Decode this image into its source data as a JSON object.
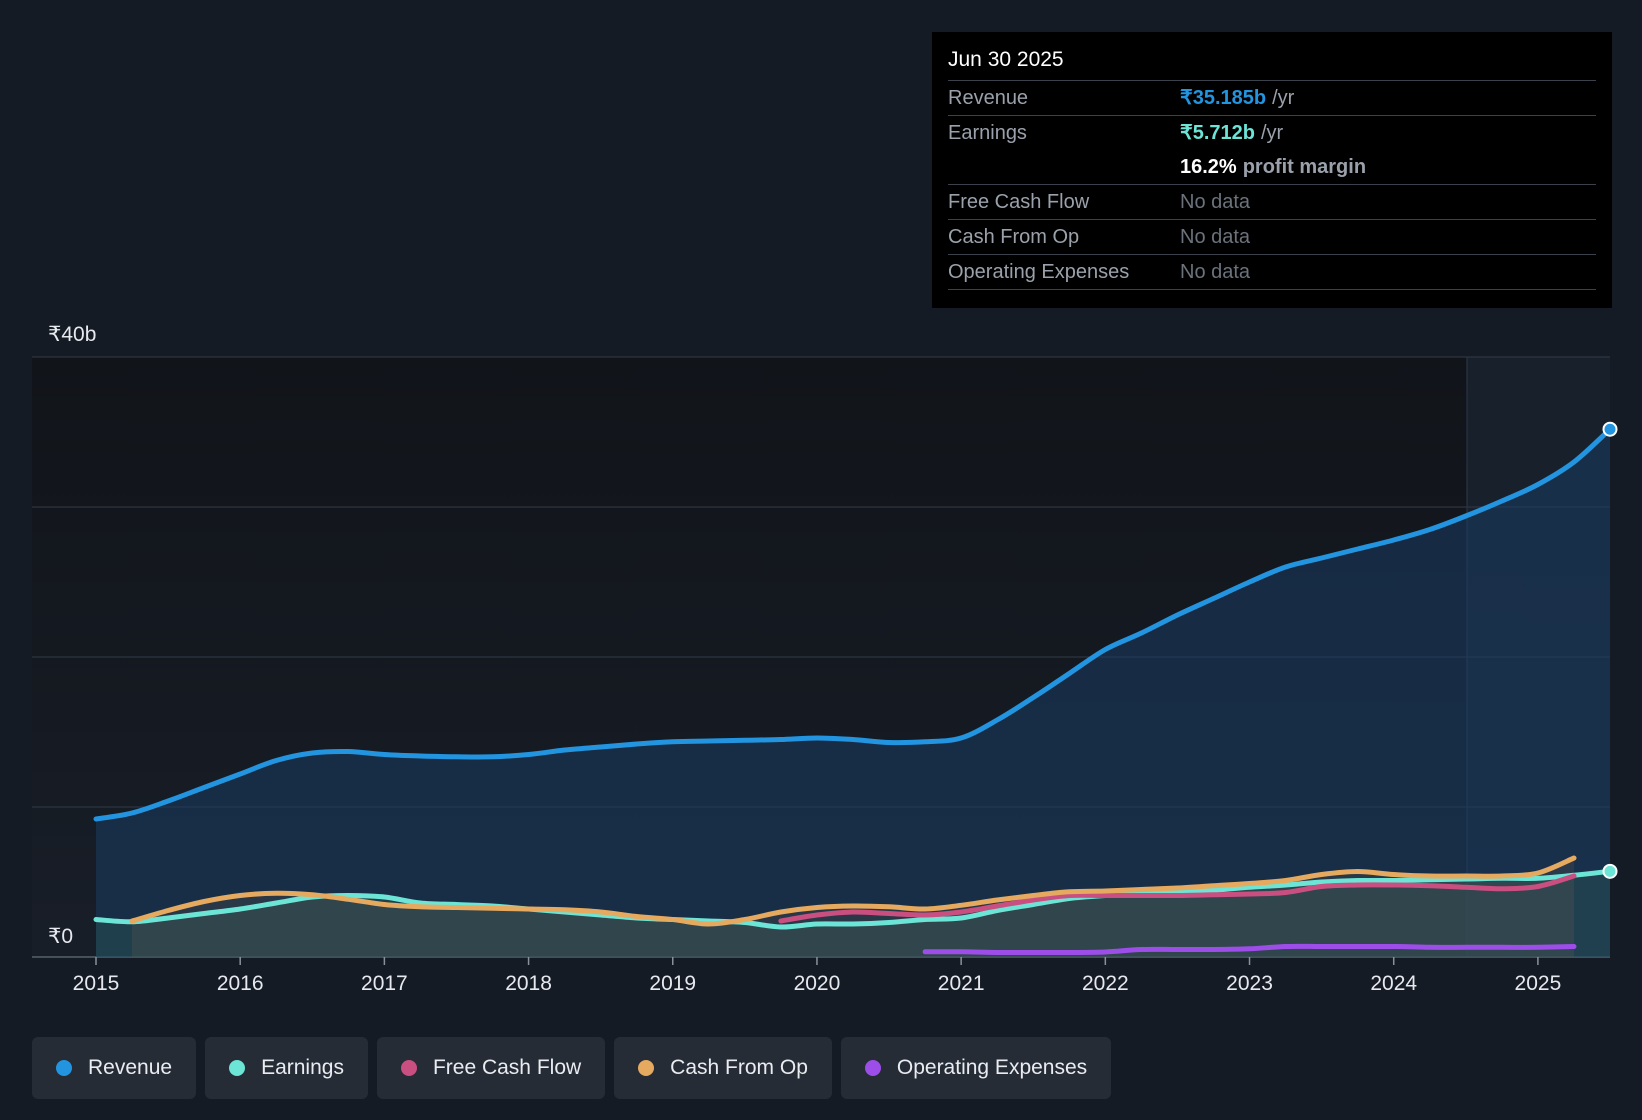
{
  "tooltip": {
    "date": "Jun 30 2025",
    "revenue_label": "Revenue",
    "revenue_value": "₹35.185b",
    "revenue_unit": "/yr",
    "earnings_label": "Earnings",
    "earnings_value": "₹5.712b",
    "earnings_unit": "/yr",
    "margin_value": "16.2%",
    "margin_label": "profit margin",
    "fcf_label": "Free Cash Flow",
    "fcf_value": "No data",
    "cfo_label": "Cash From Op",
    "cfo_value": "No data",
    "opex_label": "Operating Expenses",
    "opex_value": "No data"
  },
  "legend": [
    {
      "label": "Revenue",
      "color": "#2394df"
    },
    {
      "label": "Earnings",
      "color": "#6ce4d6"
    },
    {
      "label": "Free Cash Flow",
      "color": "#c94f80"
    },
    {
      "label": "Cash From Op",
      "color": "#e5a95f"
    },
    {
      "label": "Operating Expenses",
      "color": "#9d4ee8"
    }
  ],
  "chart_data": {
    "type": "line",
    "title": "",
    "ylabel": "",
    "ylim": [
      0,
      40
    ],
    "y_tick_labels": [
      {
        "value": 40,
        "label": "₹40b"
      },
      {
        "value": 0,
        "label": "₹0"
      }
    ],
    "gridlines": [
      0,
      10,
      20,
      30,
      40
    ],
    "x_ticks": [
      "2015",
      "2016",
      "2017",
      "2018",
      "2019",
      "2020",
      "2021",
      "2022",
      "2023",
      "2024",
      "2025"
    ],
    "xlim": [
      2015.0,
      2025.5
    ],
    "highlight_from": 2024.5,
    "series": [
      {
        "name": "Revenue",
        "color": "#2394df",
        "fill": true,
        "points": [
          [
            2015.0,
            9.2
          ],
          [
            2015.25,
            9.6
          ],
          [
            2015.5,
            10.4
          ],
          [
            2015.75,
            11.3
          ],
          [
            2016.0,
            12.2
          ],
          [
            2016.25,
            13.1
          ],
          [
            2016.5,
            13.6
          ],
          [
            2016.75,
            13.7
          ],
          [
            2017.0,
            13.5
          ],
          [
            2017.25,
            13.4
          ],
          [
            2017.5,
            13.35
          ],
          [
            2017.75,
            13.35
          ],
          [
            2018.0,
            13.5
          ],
          [
            2018.25,
            13.8
          ],
          [
            2018.5,
            14.0
          ],
          [
            2018.75,
            14.2
          ],
          [
            2019.0,
            14.35
          ],
          [
            2019.25,
            14.4
          ],
          [
            2019.5,
            14.45
          ],
          [
            2019.75,
            14.5
          ],
          [
            2020.0,
            14.6
          ],
          [
            2020.25,
            14.5
          ],
          [
            2020.5,
            14.3
          ],
          [
            2020.75,
            14.35
          ],
          [
            2021.0,
            14.6
          ],
          [
            2021.25,
            15.8
          ],
          [
            2021.5,
            17.3
          ],
          [
            2021.75,
            18.9
          ],
          [
            2022.0,
            20.5
          ],
          [
            2022.25,
            21.6
          ],
          [
            2022.5,
            22.8
          ],
          [
            2022.75,
            23.9
          ],
          [
            2023.0,
            25.0
          ],
          [
            2023.25,
            26.0
          ],
          [
            2023.5,
            26.6
          ],
          [
            2023.75,
            27.2
          ],
          [
            2024.0,
            27.8
          ],
          [
            2024.25,
            28.5
          ],
          [
            2024.5,
            29.4
          ],
          [
            2024.75,
            30.4
          ],
          [
            2025.0,
            31.5
          ],
          [
            2025.25,
            33.0
          ],
          [
            2025.5,
            35.185
          ]
        ]
      },
      {
        "name": "Earnings",
        "color": "#6ce4d6",
        "fill": true,
        "points": [
          [
            2015.0,
            2.5
          ],
          [
            2015.25,
            2.35
          ],
          [
            2015.5,
            2.6
          ],
          [
            2015.75,
            2.9
          ],
          [
            2016.0,
            3.2
          ],
          [
            2016.25,
            3.6
          ],
          [
            2016.5,
            4.0
          ],
          [
            2016.75,
            4.1
          ],
          [
            2017.0,
            4.0
          ],
          [
            2017.25,
            3.6
          ],
          [
            2017.5,
            3.5
          ],
          [
            2017.75,
            3.4
          ],
          [
            2018.0,
            3.2
          ],
          [
            2018.25,
            3.0
          ],
          [
            2018.5,
            2.8
          ],
          [
            2018.75,
            2.6
          ],
          [
            2019.0,
            2.5
          ],
          [
            2019.25,
            2.4
          ],
          [
            2019.5,
            2.3
          ],
          [
            2019.75,
            2.0
          ],
          [
            2020.0,
            2.2
          ],
          [
            2020.25,
            2.2
          ],
          [
            2020.5,
            2.3
          ],
          [
            2020.75,
            2.5
          ],
          [
            2021.0,
            2.6
          ],
          [
            2021.25,
            3.1
          ],
          [
            2021.5,
            3.5
          ],
          [
            2021.75,
            3.9
          ],
          [
            2022.0,
            4.1
          ],
          [
            2022.25,
            4.2
          ],
          [
            2022.5,
            4.3
          ],
          [
            2022.75,
            4.45
          ],
          [
            2023.0,
            4.65
          ],
          [
            2023.25,
            4.8
          ],
          [
            2023.5,
            5.0
          ],
          [
            2023.75,
            5.1
          ],
          [
            2024.0,
            5.1
          ],
          [
            2024.25,
            5.15
          ],
          [
            2024.5,
            5.2
          ],
          [
            2024.75,
            5.25
          ],
          [
            2025.0,
            5.25
          ],
          [
            2025.25,
            5.45
          ],
          [
            2025.5,
            5.712
          ]
        ]
      },
      {
        "name": "Free Cash Flow",
        "color": "#c94f80",
        "fill": false,
        "points": [
          [
            2019.75,
            2.4
          ],
          [
            2020.0,
            2.8
          ],
          [
            2020.25,
            3.0
          ],
          [
            2020.5,
            2.9
          ],
          [
            2020.75,
            2.8
          ],
          [
            2021.0,
            3.0
          ],
          [
            2021.25,
            3.4
          ],
          [
            2021.5,
            3.8
          ],
          [
            2021.75,
            4.1
          ],
          [
            2022.0,
            4.1
          ],
          [
            2022.25,
            4.1
          ],
          [
            2022.5,
            4.1
          ],
          [
            2022.75,
            4.15
          ],
          [
            2023.0,
            4.2
          ],
          [
            2023.25,
            4.3
          ],
          [
            2023.5,
            4.7
          ],
          [
            2023.75,
            4.8
          ],
          [
            2024.0,
            4.8
          ],
          [
            2024.25,
            4.75
          ],
          [
            2024.5,
            4.65
          ],
          [
            2024.75,
            4.55
          ],
          [
            2025.0,
            4.7
          ],
          [
            2025.25,
            5.4
          ]
        ]
      },
      {
        "name": "Cash From Op",
        "color": "#e5a95f",
        "fill": true,
        "points": [
          [
            2015.25,
            2.4
          ],
          [
            2015.5,
            3.1
          ],
          [
            2015.75,
            3.7
          ],
          [
            2016.0,
            4.1
          ],
          [
            2016.25,
            4.25
          ],
          [
            2016.5,
            4.15
          ],
          [
            2016.75,
            3.85
          ],
          [
            2017.0,
            3.5
          ],
          [
            2017.25,
            3.35
          ],
          [
            2017.5,
            3.3
          ],
          [
            2017.75,
            3.25
          ],
          [
            2018.0,
            3.2
          ],
          [
            2018.25,
            3.15
          ],
          [
            2018.5,
            3.0
          ],
          [
            2018.75,
            2.7
          ],
          [
            2019.0,
            2.5
          ],
          [
            2019.25,
            2.2
          ],
          [
            2019.5,
            2.5
          ],
          [
            2019.75,
            3.0
          ],
          [
            2020.0,
            3.3
          ],
          [
            2020.25,
            3.4
          ],
          [
            2020.5,
            3.35
          ],
          [
            2020.75,
            3.2
          ],
          [
            2021.0,
            3.45
          ],
          [
            2021.25,
            3.8
          ],
          [
            2021.5,
            4.1
          ],
          [
            2021.75,
            4.35
          ],
          [
            2022.0,
            4.4
          ],
          [
            2022.25,
            4.5
          ],
          [
            2022.5,
            4.6
          ],
          [
            2022.75,
            4.75
          ],
          [
            2023.0,
            4.9
          ],
          [
            2023.25,
            5.1
          ],
          [
            2023.5,
            5.5
          ],
          [
            2023.75,
            5.7
          ],
          [
            2024.0,
            5.5
          ],
          [
            2024.25,
            5.4
          ],
          [
            2024.5,
            5.4
          ],
          [
            2024.75,
            5.4
          ],
          [
            2025.0,
            5.6
          ],
          [
            2025.25,
            6.6
          ]
        ]
      },
      {
        "name": "Operating Expenses",
        "color": "#9d4ee8",
        "fill": false,
        "points": [
          [
            2020.75,
            0.35
          ],
          [
            2021.0,
            0.35
          ],
          [
            2021.25,
            0.3
          ],
          [
            2021.5,
            0.3
          ],
          [
            2021.75,
            0.3
          ],
          [
            2022.0,
            0.33
          ],
          [
            2022.25,
            0.5
          ],
          [
            2022.5,
            0.5
          ],
          [
            2022.75,
            0.5
          ],
          [
            2023.0,
            0.55
          ],
          [
            2023.25,
            0.7
          ],
          [
            2023.5,
            0.7
          ],
          [
            2023.75,
            0.7
          ],
          [
            2024.0,
            0.7
          ],
          [
            2024.25,
            0.65
          ],
          [
            2024.5,
            0.65
          ],
          [
            2024.75,
            0.65
          ],
          [
            2025.0,
            0.65
          ],
          [
            2025.25,
            0.7
          ]
        ]
      }
    ]
  }
}
